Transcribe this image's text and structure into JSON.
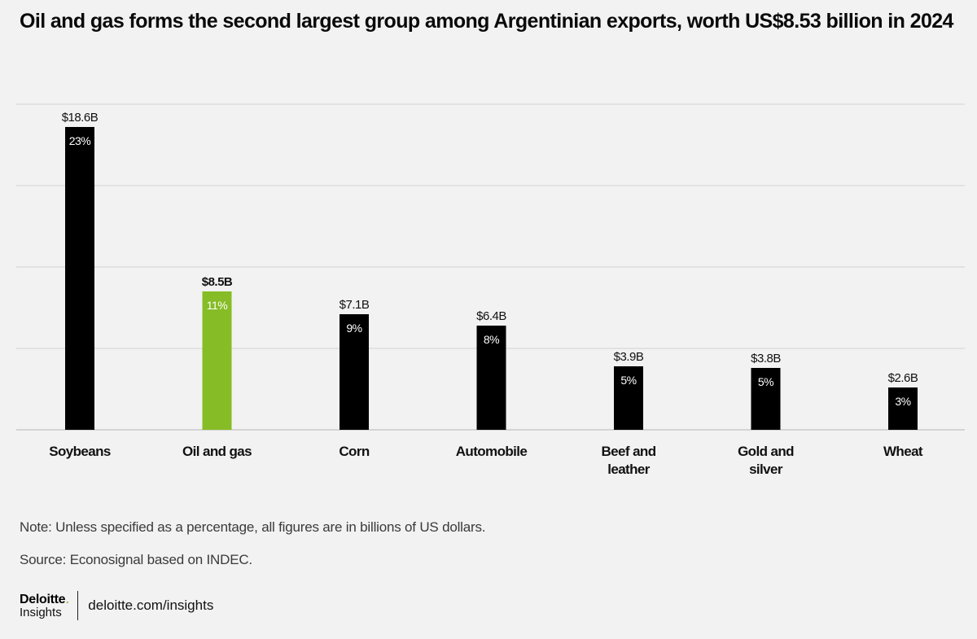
{
  "chart_data": {
    "type": "bar",
    "title": "Oil and gas forms the second largest group among Argentinian exports, worth US$8.53 billion in 2024",
    "categories": [
      "Soybeans",
      "Oil and gas",
      "Corn",
      "Automobile",
      "Beef and leather",
      "Gold and silver",
      "Wheat"
    ],
    "category_lines": [
      [
        "Soybeans"
      ],
      [
        "Oil and gas"
      ],
      [
        "Corn"
      ],
      [
        "Automobile"
      ],
      [
        "Beef and",
        "leather"
      ],
      [
        "Gold and",
        "silver"
      ],
      [
        "Wheat"
      ]
    ],
    "values": [
      18.6,
      8.5,
      7.1,
      6.4,
      3.9,
      3.8,
      2.6
    ],
    "value_labels": [
      "$18.6B",
      "$8.5B",
      "$7.1B",
      "$6.4B",
      "$3.9B",
      "$3.8B",
      "$2.6B"
    ],
    "share_labels": [
      "23%",
      "11%",
      "9%",
      "8%",
      "5%",
      "5%",
      "3%"
    ],
    "highlight_index": 1,
    "ylim": [
      0,
      20
    ],
    "gridlines": [
      0,
      5,
      10,
      15,
      20
    ],
    "xlabel": "",
    "ylabel": "",
    "bar_color": "#000000",
    "highlight_color": "#86bc25",
    "grid_color": "#d2d2d2"
  },
  "note": "Note: Unless specified as a percentage, all figures are in billions of US dollars.",
  "source": "Source: Econosignal based on INDEC.",
  "footer": {
    "brand": "Deloitte",
    "brand_dot": ".",
    "brand_sub": "Insights",
    "url": "deloitte.com/insights",
    "brand_color": "#86bc25"
  }
}
